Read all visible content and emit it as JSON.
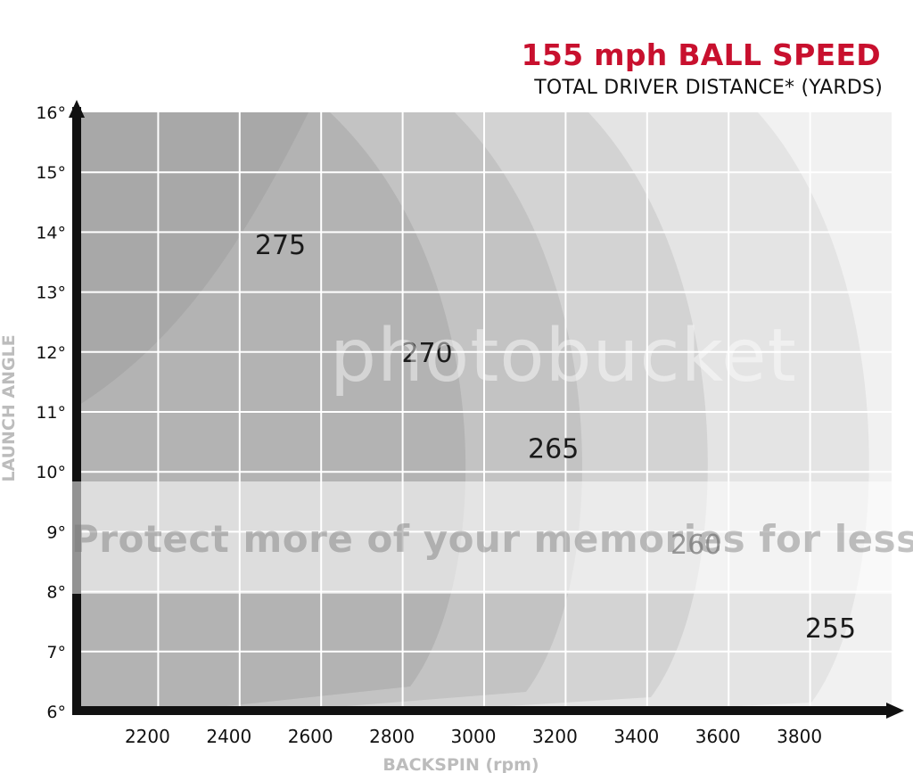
{
  "header": {
    "title": "155 mph BALL SPEED",
    "subtitle": "TOTAL DRIVER DISTANCE* (YARDS)"
  },
  "watermark": {
    "brand": "photobucket",
    "tagline": "Protect more of your memories for less!"
  },
  "colors": {
    "title": "#c8102e",
    "axis_label": "#bcbcbc",
    "axis": "#111111"
  },
  "chart_data": {
    "type": "heatmap",
    "title": "155 mph BALL SPEED",
    "subtitle": "TOTAL DRIVER DISTANCE* (YARDS)",
    "xlabel": "BACKSPIN (rpm)",
    "ylabel": "LAUNCH ANGLE",
    "x_ticks": [
      2200,
      2400,
      2600,
      2800,
      3000,
      3200,
      3400,
      3600,
      3800
    ],
    "y_ticks": [
      "6°",
      "7°",
      "8°",
      "9°",
      "10°",
      "11°",
      "12°",
      "13°",
      "14°",
      "15°",
      "16°"
    ],
    "xlim": [
      2000,
      4000
    ],
    "ylim": [
      6,
      16
    ],
    "grid": true,
    "contour_labels": [
      {
        "value": "275",
        "x": 2500,
        "y": 13.8
      },
      {
        "value": "270",
        "x": 2860,
        "y": 12.0
      },
      {
        "value": "265",
        "x": 3170,
        "y": 10.4
      },
      {
        "value": "260",
        "x": 3520,
        "y": 8.8
      },
      {
        "value": "255",
        "x": 3850,
        "y": 7.4
      }
    ]
  }
}
